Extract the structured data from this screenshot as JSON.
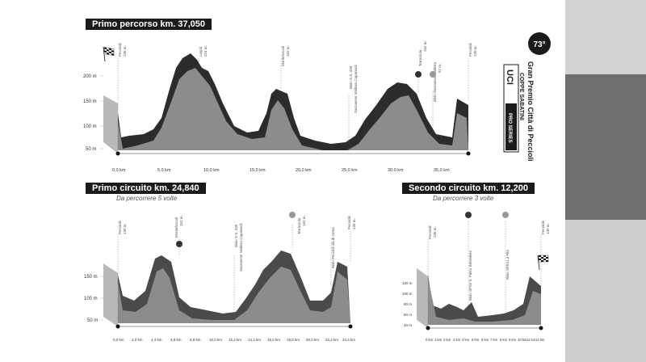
{
  "route": {
    "title": "Primo percorso km. 37,050",
    "y_ticks": [
      "200 m",
      "150 m",
      "100 m",
      "50 m"
    ],
    "x_ticks": [
      "0,0 km",
      "5,0 km",
      "10,0 km",
      "15,0 km",
      "20,0 km",
      "25,0 km",
      "30,0 km",
      "35,0 km"
    ],
    "places": [
      {
        "name": "Pecciolii",
        "alt": "130 m."
      },
      {
        "name": "Legoli",
        "alt": "224 m."
      },
      {
        "name": "Montefoscoli",
        "alt": "152 m."
      },
      {
        "name": "Bivio S.S. 439",
        "alt": "Sarzanese Valdera Capannoli"
      },
      {
        "name": "Terricciola",
        "alt": "162 m."
      },
      {
        "name": "Bivio Sarzanese Valdera",
        "alt": "57 m."
      },
      {
        "name": "Pecciolii",
        "alt": "130 m."
      }
    ]
  },
  "circuit1": {
    "title": "Primo circuito km. 24,840",
    "subtitle": "Da percorrere 5 volte",
    "y_ticks": [
      "150 m",
      "100 m",
      "50 m"
    ],
    "x_ticks": [
      "0,0 km",
      "2,2 km",
      "4,4 km",
      "6,6 km",
      "8,8 km",
      "10,0 km",
      "12,2 km",
      "14,4 km",
      "16,6 km",
      "18,8 km",
      "20,0 km",
      "22,2 km",
      "24,4 km"
    ],
    "places": [
      {
        "name": "Pecciolii",
        "alt": "130 m."
      },
      {
        "name": "Montefoscoli",
        "alt": "152 m."
      },
      {
        "name": "Bivio S.S. 439",
        "alt": "Sarzanese Valdera Capannoli"
      },
      {
        "name": "Terricciola",
        "alt": "162 m."
      },
      {
        "name": "Bivio Peccioli via di Greta",
        "alt": ""
      },
      {
        "name": "Pecciolii",
        "alt": "130 m."
      }
    ]
  },
  "circuit2": {
    "title": "Secondo circuito km. 12,200",
    "subtitle": "Da percorrere 3 volte",
    "y_ticks": [
      "120 m",
      "100 m",
      "80 m",
      "60 m",
      "40 m"
    ],
    "x_ticks": [
      "0 km",
      "1 km",
      "2 km",
      "3 km",
      "4 km",
      "5 km",
      "6 km",
      "7 km",
      "8 km",
      "9 km",
      "10 km",
      "11 km",
      "12 km"
    ],
    "places": [
      {
        "name": "Pecciolii",
        "alt": "130 m."
      },
      {
        "name": "Bivio SP26 S. Pietro Belvedere",
        "alt": ""
      },
      {
        "name": "Bivio SP64 La Fila",
        "alt": ""
      },
      {
        "name": "Pecciolii",
        "alt": "130 m."
      }
    ]
  },
  "logo": {
    "edition": "73°",
    "event": "Gran Premio Città di Peccioli",
    "subtitle": "COPPE SABATINI",
    "uci": "UCI",
    "series": "PRO SERIES"
  },
  "colors": {
    "dark": "#2c2c2c",
    "mid": "#8c8c8c",
    "light": "#b9b9b9",
    "accent": "#1b1b1b"
  }
}
